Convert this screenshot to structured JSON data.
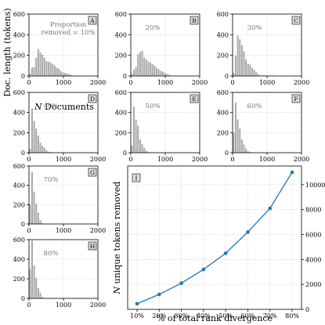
{
  "figure": {
    "y_axis_label": "Doc. length (tokens)",
    "x_axis_label_italic": "N",
    "x_axis_label_rest": " Documents"
  },
  "chart_data": [
    {
      "type": "bar",
      "panel": "A",
      "annotation": [
        "Proportion",
        "removed = 10%"
      ],
      "xlim": [
        0,
        2000
      ],
      "ylim": [
        0,
        600
      ],
      "xticks": [
        0,
        1000,
        2000
      ],
      "yticks": [
        0,
        200,
        400,
        600
      ],
      "grid": true,
      "bins": [
        {
          "x": 0,
          "w": 60,
          "y": 20
        },
        {
          "x": 60,
          "w": 60,
          "y": 80
        },
        {
          "x": 120,
          "w": 60,
          "y": 85
        },
        {
          "x": 180,
          "w": 60,
          "y": 175
        },
        {
          "x": 240,
          "w": 60,
          "y": 260
        },
        {
          "x": 300,
          "w": 60,
          "y": 230
        },
        {
          "x": 360,
          "w": 60,
          "y": 205
        },
        {
          "x": 420,
          "w": 60,
          "y": 175
        },
        {
          "x": 480,
          "w": 60,
          "y": 145
        },
        {
          "x": 540,
          "w": 60,
          "y": 140
        },
        {
          "x": 600,
          "w": 60,
          "y": 130
        },
        {
          "x": 660,
          "w": 60,
          "y": 115
        },
        {
          "x": 720,
          "w": 60,
          "y": 100
        },
        {
          "x": 780,
          "w": 60,
          "y": 80
        },
        {
          "x": 840,
          "w": 60,
          "y": 70
        },
        {
          "x": 900,
          "w": 60,
          "y": 45
        },
        {
          "x": 960,
          "w": 60,
          "y": 35
        },
        {
          "x": 1020,
          "w": 60,
          "y": 30
        },
        {
          "x": 1080,
          "w": 60,
          "y": 22
        },
        {
          "x": 1140,
          "w": 60,
          "y": 15
        },
        {
          "x": 1200,
          "w": 60,
          "y": 10
        }
      ]
    },
    {
      "type": "bar",
      "panel": "B",
      "annotation": [
        "20%"
      ],
      "xlim": [
        0,
        2000
      ],
      "ylim": [
        0,
        600
      ],
      "xticks": [
        0,
        1000,
        2000
      ],
      "yticks": [
        0,
        200,
        400,
        600
      ],
      "grid": true,
      "bins": [
        {
          "x": 0,
          "w": 60,
          "y": 20
        },
        {
          "x": 60,
          "w": 60,
          "y": 60
        },
        {
          "x": 120,
          "w": 60,
          "y": 85
        },
        {
          "x": 180,
          "w": 60,
          "y": 210
        },
        {
          "x": 240,
          "w": 60,
          "y": 230
        },
        {
          "x": 300,
          "w": 60,
          "y": 245
        },
        {
          "x": 360,
          "w": 60,
          "y": 180
        },
        {
          "x": 420,
          "w": 60,
          "y": 160
        },
        {
          "x": 480,
          "w": 60,
          "y": 140
        },
        {
          "x": 540,
          "w": 60,
          "y": 130
        },
        {
          "x": 600,
          "w": 60,
          "y": 115
        },
        {
          "x": 660,
          "w": 60,
          "y": 100
        },
        {
          "x": 720,
          "w": 60,
          "y": 80
        },
        {
          "x": 780,
          "w": 60,
          "y": 65
        },
        {
          "x": 840,
          "w": 60,
          "y": 50
        },
        {
          "x": 900,
          "w": 60,
          "y": 40
        },
        {
          "x": 960,
          "w": 60,
          "y": 30
        },
        {
          "x": 1020,
          "w": 60,
          "y": 20
        },
        {
          "x": 1080,
          "w": 60,
          "y": 12
        }
      ]
    },
    {
      "type": "bar",
      "panel": "C",
      "annotation": [
        "30%"
      ],
      "xlim": [
        0,
        2000
      ],
      "ylim": [
        0,
        600
      ],
      "xticks": [
        0,
        1000,
        2000
      ],
      "yticks": [
        0,
        200,
        400,
        600
      ],
      "grid": true,
      "bins": [
        {
          "x": 0,
          "w": 60,
          "y": 30
        },
        {
          "x": 60,
          "w": 60,
          "y": 200
        },
        {
          "x": 120,
          "w": 60,
          "y": 390
        },
        {
          "x": 180,
          "w": 60,
          "y": 355
        },
        {
          "x": 240,
          "w": 60,
          "y": 300
        },
        {
          "x": 300,
          "w": 60,
          "y": 240
        },
        {
          "x": 360,
          "w": 60,
          "y": 160
        },
        {
          "x": 420,
          "w": 60,
          "y": 120
        },
        {
          "x": 480,
          "w": 60,
          "y": 110
        },
        {
          "x": 540,
          "w": 60,
          "y": 80
        },
        {
          "x": 600,
          "w": 60,
          "y": 60
        },
        {
          "x": 660,
          "w": 60,
          "y": 35
        },
        {
          "x": 720,
          "w": 60,
          "y": 15
        }
      ]
    },
    {
      "type": "bar",
      "panel": "D",
      "annotation": [
        "40%"
      ],
      "xlim": [
        0,
        2000
      ],
      "ylim": [
        0,
        600
      ],
      "xticks": [
        0,
        1000,
        2000
      ],
      "yticks": [
        0,
        200,
        400,
        600
      ],
      "grid": true,
      "bins": [
        {
          "x": 0,
          "w": 60,
          "y": 40
        },
        {
          "x": 60,
          "w": 60,
          "y": 440
        },
        {
          "x": 120,
          "w": 60,
          "y": 315
        },
        {
          "x": 180,
          "w": 60,
          "y": 240
        },
        {
          "x": 240,
          "w": 60,
          "y": 170
        },
        {
          "x": 300,
          "w": 60,
          "y": 100
        },
        {
          "x": 360,
          "w": 60,
          "y": 70
        },
        {
          "x": 420,
          "w": 60,
          "y": 50
        },
        {
          "x": 480,
          "w": 60,
          "y": 25
        },
        {
          "x": 540,
          "w": 60,
          "y": 10
        },
        {
          "x": 600,
          "w": 60,
          "y": 5
        }
      ]
    },
    {
      "type": "bar",
      "panel": "E",
      "annotation": [
        "50%"
      ],
      "xlim": [
        0,
        2000
      ],
      "ylim": [
        0,
        600
      ],
      "xticks": [
        0,
        1000,
        2000
      ],
      "yticks": [
        0,
        200,
        400,
        600
      ],
      "grid": true,
      "bins": [
        {
          "x": 0,
          "w": 60,
          "y": 70
        },
        {
          "x": 60,
          "w": 60,
          "y": 460
        },
        {
          "x": 120,
          "w": 60,
          "y": 330
        },
        {
          "x": 180,
          "w": 60,
          "y": 270
        },
        {
          "x": 240,
          "w": 60,
          "y": 130
        },
        {
          "x": 300,
          "w": 60,
          "y": 85
        },
        {
          "x": 360,
          "w": 60,
          "y": 50
        },
        {
          "x": 420,
          "w": 60,
          "y": 20
        },
        {
          "x": 480,
          "w": 60,
          "y": 8
        }
      ]
    },
    {
      "type": "bar",
      "panel": "F",
      "annotation": [
        "60%"
      ],
      "xlim": [
        0,
        2000
      ],
      "ylim": [
        0,
        600
      ],
      "xticks": [
        0,
        1000,
        2000
      ],
      "yticks": [
        0,
        200,
        400,
        600
      ],
      "grid": true,
      "bins": [
        {
          "x": 0,
          "w": 60,
          "y": 200
        },
        {
          "x": 60,
          "w": 60,
          "y": 500
        },
        {
          "x": 120,
          "w": 60,
          "y": 330
        },
        {
          "x": 180,
          "w": 60,
          "y": 240
        },
        {
          "x": 240,
          "w": 60,
          "y": 130
        },
        {
          "x": 300,
          "w": 60,
          "y": 80
        },
        {
          "x": 360,
          "w": 60,
          "y": 40
        },
        {
          "x": 420,
          "w": 60,
          "y": 15
        },
        {
          "x": 480,
          "w": 60,
          "y": 5
        }
      ]
    },
    {
      "type": "bar",
      "panel": "G",
      "annotation": [
        "70%"
      ],
      "xlim": [
        0,
        2000
      ],
      "ylim": [
        0,
        600
      ],
      "xticks": [
        0,
        1000,
        2000
      ],
      "yticks": [
        0,
        200,
        400,
        600
      ],
      "grid": true,
      "bins": [
        {
          "x": 0,
          "w": 60,
          "y": 205
        },
        {
          "x": 60,
          "w": 60,
          "y": 540
        },
        {
          "x": 120,
          "w": 60,
          "y": 335
        },
        {
          "x": 180,
          "w": 60,
          "y": 210
        },
        {
          "x": 240,
          "w": 60,
          "y": 115
        },
        {
          "x": 300,
          "w": 60,
          "y": 40
        },
        {
          "x": 360,
          "w": 60,
          "y": 10
        }
      ]
    },
    {
      "type": "bar",
      "panel": "H",
      "annotation": [
        "80%"
      ],
      "xlim": [
        0,
        2000
      ],
      "ylim": [
        0,
        600
      ],
      "xticks": [
        0,
        1000,
        2000
      ],
      "yticks": [
        0,
        200,
        400,
        600
      ],
      "grid": true,
      "bins": [
        {
          "x": 0,
          "w": 60,
          "y": 300
        },
        {
          "x": 60,
          "w": 60,
          "y": 590
        },
        {
          "x": 120,
          "w": 60,
          "y": 335
        },
        {
          "x": 180,
          "w": 60,
          "y": 210
        },
        {
          "x": 240,
          "w": 60,
          "y": 105
        },
        {
          "x": 300,
          "w": 60,
          "y": 55
        },
        {
          "x": 360,
          "w": 60,
          "y": 15
        }
      ]
    },
    {
      "type": "line",
      "panel": "I",
      "xlabel": "% of total rank divergence",
      "ylabel_italic": "N",
      "ylabel_rest": " unique tokens removed",
      "categories": [
        "10%",
        "20%",
        "30%",
        "40%",
        "50%",
        "60%",
        "70%",
        "80%"
      ],
      "values": [
        450,
        1200,
        2100,
        3200,
        4500,
        6200,
        8100,
        11000
      ],
      "ylim": [
        0,
        11500
      ],
      "yticks": [
        0,
        2000,
        4000,
        6000,
        8000,
        10000
      ],
      "y_axis_side": "right",
      "grid": true,
      "line_color": "#1f77b4",
      "marker": "circle"
    }
  ]
}
